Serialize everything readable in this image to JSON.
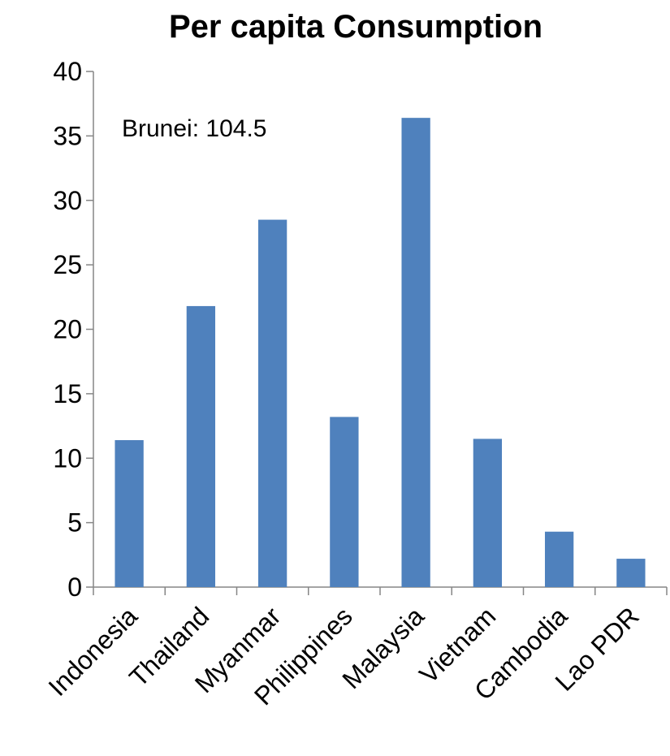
{
  "chart_data": {
    "type": "bar",
    "title": "Per capita Consumption",
    "categories": [
      "Indonesia",
      "Thailand",
      "Myanmar",
      "Philippines",
      "Malaysia",
      "Vietnam",
      "Cambodia",
      "Lao PDR"
    ],
    "values": [
      11.4,
      21.8,
      28.5,
      13.2,
      36.4,
      11.5,
      4.3,
      2.2
    ],
    "ylim": [
      0,
      40
    ],
    "yticks": [
      0,
      5,
      10,
      15,
      20,
      25,
      30,
      35,
      40
    ],
    "annotation": "Brunei: 104.5",
    "grid": false,
    "legend": "none",
    "bar_color": "#4f81bd"
  }
}
